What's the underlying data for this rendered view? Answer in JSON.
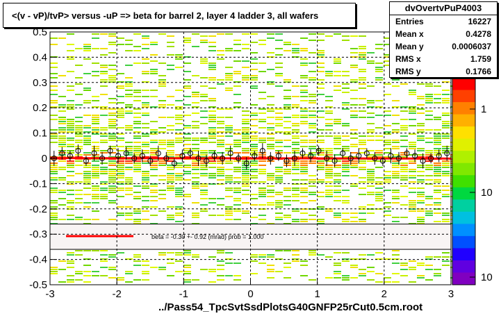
{
  "title": "<(v - vP)/tvP> versus  -uP => beta for barrel 2, layer 4 ladder 3, all wafers",
  "stats": {
    "name": "dvOvertvPuP4003",
    "rows": [
      {
        "label": "Entries",
        "value": "16227"
      },
      {
        "label": "Mean x",
        "value": "0.4278"
      },
      {
        "label": "Mean y",
        "value": "0.0006037"
      },
      {
        "label": "RMS x",
        "value": "1.759"
      },
      {
        "label": "RMS y",
        "value": "0.1766"
      }
    ]
  },
  "xlabel": "../Pass54_TpcSvtSsdPlotsG40GNFP25rCut0.5cm.root",
  "legend": {
    "text": "beta =   -0.30 +-   0.92 (mrad) prob = 1.000",
    "color": "#ff0000"
  },
  "colors": {
    "fit_line": "#ff0000",
    "frame": "#000000",
    "grid": "#000000"
  },
  "chart_data": {
    "type": "heatmap",
    "xlim": [
      -3,
      3
    ],
    "ylim": [
      -0.5,
      0.5
    ],
    "xticks": [
      -3,
      -2,
      -1,
      0,
      1,
      2,
      3
    ],
    "yticks": [
      -0.5,
      -0.4,
      -0.3,
      -0.2,
      -0.1,
      0,
      0.1,
      0.2,
      0.3,
      0.4,
      0.5
    ],
    "ytick_labels": [
      "-0.5",
      "-0.4",
      "-0.3",
      "-0.2",
      "-0.1",
      "0",
      "0.1",
      "0.2",
      "0.3",
      "0.4",
      "0.5"
    ],
    "grid": true,
    "colorbar_labels": [
      "1",
      "10",
      "10"
    ],
    "profile": {
      "x": [
        -2.94,
        -2.82,
        -2.7,
        -2.58,
        -2.46,
        -2.34,
        -2.22,
        -2.1,
        -1.98,
        -1.86,
        -1.74,
        -1.62,
        -1.5,
        -1.38,
        -1.26,
        -1.14,
        -1.02,
        -0.9,
        -0.78,
        -0.66,
        -0.54,
        -0.42,
        -0.3,
        -0.18,
        -0.06,
        0.06,
        0.18,
        0.3,
        0.42,
        0.54,
        0.66,
        0.78,
        0.9,
        1.02,
        1.14,
        1.26,
        1.38,
        1.5,
        1.62,
        1.74,
        1.86,
        1.98,
        2.1,
        2.22,
        2.34,
        2.46,
        2.58,
        2.7,
        2.82,
        2.94
      ],
      "y": [
        0.0,
        0.02,
        0.01,
        0.03,
        -0.01,
        0.02,
        0.0,
        0.03,
        0.01,
        0.02,
        0.0,
        0.01,
        -0.01,
        0.02,
        0.0,
        -0.02,
        0.01,
        0.02,
        0.0,
        -0.01,
        0.01,
        0.0,
        0.02,
        0.0,
        -0.02,
        0.01,
        0.03,
        0.0,
        0.01,
        -0.01,
        0.0,
        0.02,
        0.01,
        0.03,
        0.0,
        -0.01,
        0.02,
        0.0,
        0.01,
        0.02,
        0.0,
        -0.01,
        0.01,
        0.0,
        0.02,
        0.01,
        -0.01,
        0.0,
        0.01,
        0.02
      ],
      "err": [
        0.03,
        0.025,
        0.02,
        0.025,
        0.02,
        0.03,
        0.025,
        0.02,
        0.03,
        0.025,
        0.02,
        0.025,
        0.02,
        0.03,
        0.025,
        0.02,
        0.025,
        0.02,
        0.03,
        0.025,
        0.02,
        0.025,
        0.03,
        0.02,
        0.025,
        0.02,
        0.03,
        0.025,
        0.02,
        0.025,
        0.03,
        0.02,
        0.025,
        0.02,
        0.03,
        0.025,
        0.02,
        0.025,
        0.03,
        0.02,
        0.025,
        0.02,
        0.03,
        0.025,
        0.02,
        0.025,
        0.03,
        0.02,
        0.025,
        0.03
      ]
    },
    "fit": {
      "slope": -0.0003,
      "intercept": 0.0
    }
  }
}
